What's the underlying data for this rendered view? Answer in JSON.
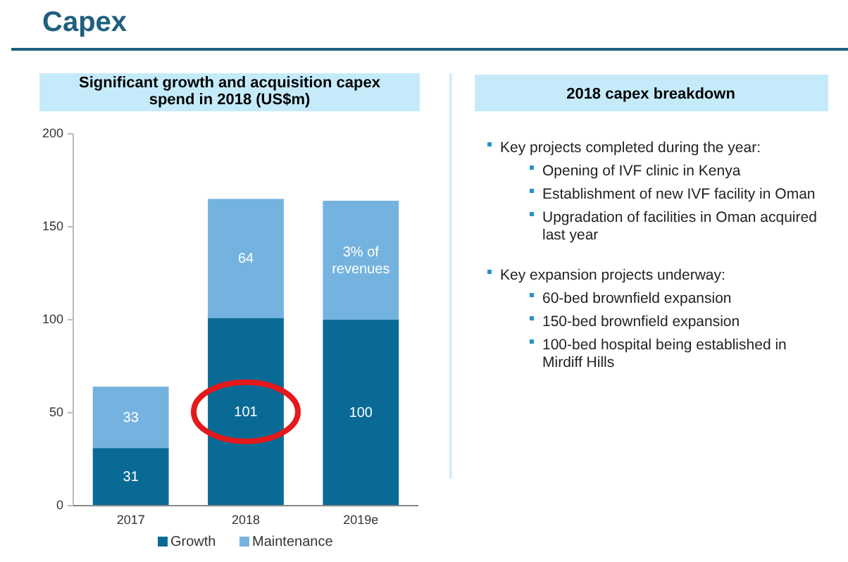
{
  "chart_data": [
    {
      "type": "bar",
      "title": "Significant growth and acquisition capex spend in 2018 (US$m)",
      "annotations": [
        "Capex",
        "3% of revenues"
      ],
      "categories": [
        "2017",
        "2018",
        "2019e"
      ],
      "stacked": true,
      "ylim": [
        0,
        200
      ],
      "yticks": [
        0,
        50,
        100,
        150,
        200
      ],
      "legend": "bottom",
      "series": [
        {
          "name": "Growth",
          "color": "#0a6a96",
          "values": [
            31,
            101,
            100
          ],
          "value_labels": [
            "31",
            "101",
            "100"
          ]
        },
        {
          "name": "Maintenance",
          "color": "#74b3df",
          "values": [
            33,
            64,
            64
          ],
          "value_labels": [
            "33",
            "64",
            null
          ]
        }
      ]
    },
    {
      "type": "other",
      "title": "2018 capex breakdown",
      "annotations": [
        "Key projects completed during the year:",
        "Opening of IVF clinic in Kenya",
        "Establishment of new IVF facility in Oman",
        "Upgradation of facilities in Oman acquired last year",
        "Key expansion projects underway:",
        "60-bed brownfield expansion",
        "150-bed brownfield expansion",
        "100-bed hospital being established in Mirdiff Hills"
      ]
    }
  ]
}
